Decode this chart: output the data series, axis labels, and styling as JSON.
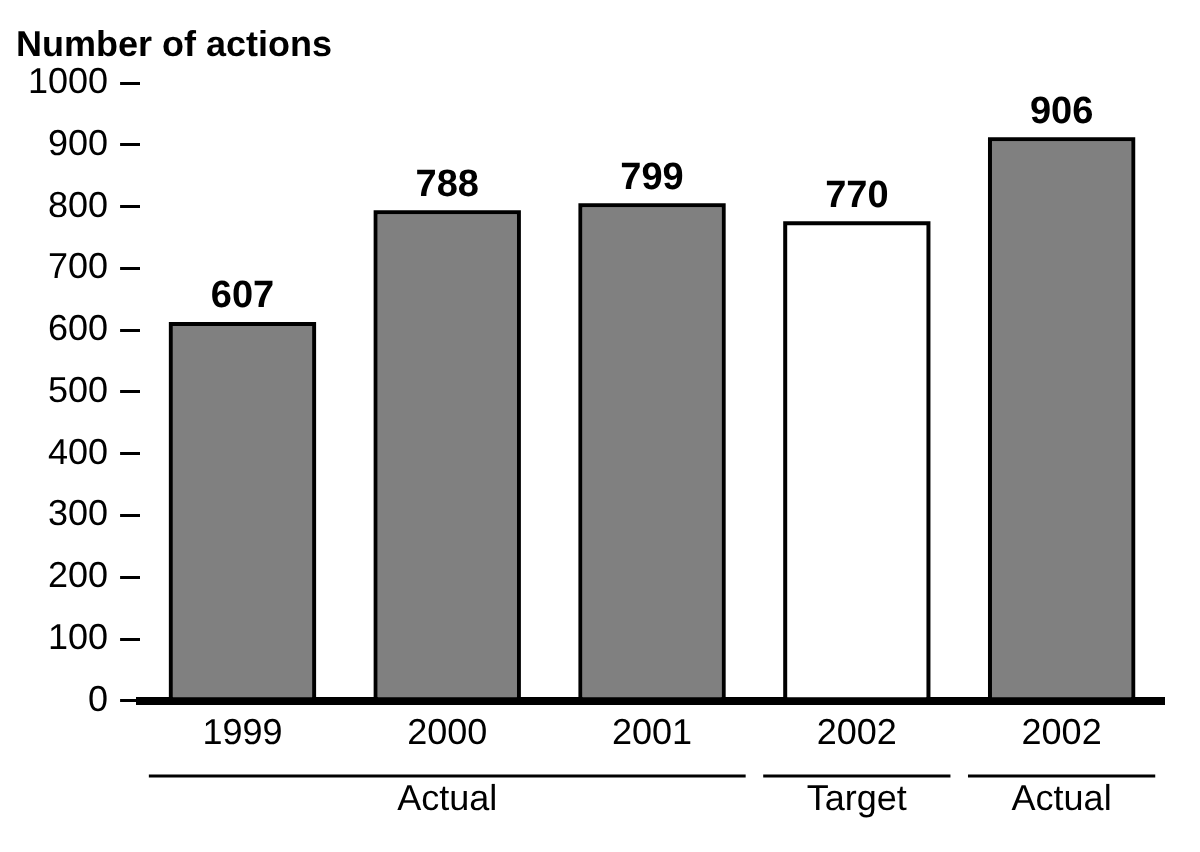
{
  "chart_data": {
    "type": "bar",
    "ylabel": "Number of actions",
    "categories": [
      "1999",
      "2000",
      "2001",
      "2002",
      "2002"
    ],
    "values": [
      607,
      788,
      799,
      770,
      906
    ],
    "colors": [
      "#808080",
      "#808080",
      "#808080",
      "#ffffff",
      "#808080"
    ],
    "ylim": [
      0,
      1000
    ],
    "yticks": [
      0,
      100,
      200,
      300,
      400,
      500,
      600,
      700,
      800,
      900,
      1000
    ],
    "grid": false,
    "legend": false,
    "data_labels": true,
    "annotations": [
      "Actual",
      "Target",
      "Actual"
    ]
  }
}
